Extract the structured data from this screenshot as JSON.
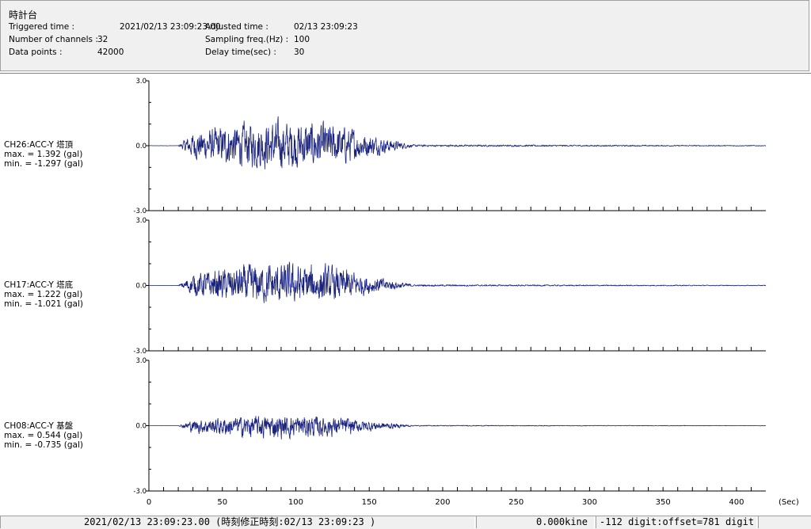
{
  "header": {
    "title": "時計台",
    "triggered_label": "Triggered time :",
    "triggered_value": "2021/02/13 23:09:23.00",
    "channels_label": "Number of channels :",
    "channels_value": "32",
    "datapoints_label": "Data points :",
    "datapoints_value": "42000",
    "adjusted_label": "Adjusted time :",
    "adjusted_value": "02/13 23:09:23",
    "sampling_label": "Sampling freq.(Hz) :",
    "sampling_value": "100",
    "delay_label": "Delay time(sec) :",
    "delay_value": "30"
  },
  "chart_data": {
    "type": "line",
    "x_unit": "(Sec)",
    "xlim": [
      0,
      420
    ],
    "x_ticks": [
      "0",
      "50",
      "100",
      "150",
      "200",
      "250",
      "300",
      "350",
      "400"
    ],
    "ylim": [
      -3.0,
      3.0
    ],
    "y_ticks": [
      "3.0",
      "0.0",
      "-3.0"
    ],
    "line_color": "#1a237e",
    "series": [
      {
        "name": "CH26:ACC-Y 塔頂",
        "max_text": "max. = 1.392 (gal)",
        "min_text": "min. = -1.297 (gal)",
        "max": 1.392,
        "min": -1.297
      },
      {
        "name": "CH17:ACC-Y 塔底",
        "max_text": "max. = 1.222 (gal)",
        "min_text": "min. = -1.021 (gal)",
        "max": 1.222,
        "min": -1.021
      },
      {
        "name": "CH08:ACC-Y 基盤",
        "max_text": "max. = 0.544 (gal)",
        "min_text": "min. = -0.735 (gal)",
        "max": 0.544,
        "min": -0.735
      }
    ]
  },
  "status": {
    "time": "2021/02/13 23:09:23.00  (時刻修正時刻:02/13 23:09:23  )",
    "kine": "0.000kine",
    "digit": "-112 digit:offset=781 digit"
  }
}
